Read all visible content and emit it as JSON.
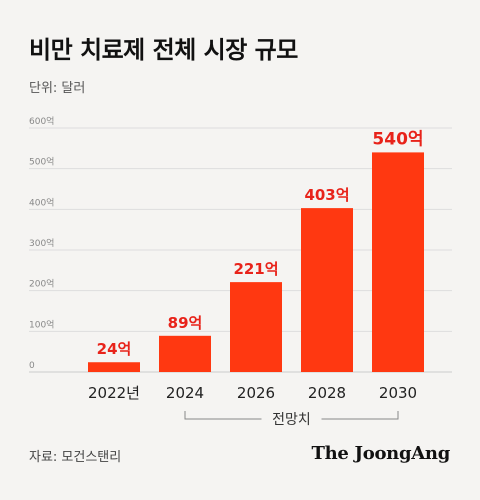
{
  "header": {
    "title": "비만 치료제 전체 시장 규모",
    "unit": "단위: 달러"
  },
  "footer": {
    "source": "자료: 모건스탠리",
    "brand": "The JoongAng"
  },
  "forecast_label": "전망치",
  "colors": {
    "bar": "#ff3811",
    "value_label": "#e8231a",
    "axis_text": "#888888",
    "grid": "#dddddd",
    "bracket": "#888888"
  },
  "chart_data": {
    "type": "bar",
    "title": "비만 치료제 전체 시장 규모",
    "ylabel": "",
    "xlabel": "",
    "categories": [
      "2022년",
      "2024",
      "2026",
      "2028",
      "2030"
    ],
    "values": [
      24,
      89,
      221,
      403,
      540
    ],
    "data_labels": [
      "24억",
      "89억",
      "221억",
      "403억",
      "540억"
    ],
    "ylim": [
      0,
      600
    ],
    "yticks": [
      0,
      100,
      200,
      300,
      400,
      500,
      600
    ],
    "ytick_labels": [
      "0",
      "100억",
      "200억",
      "300억",
      "400억",
      "500억",
      "600억"
    ],
    "grid": true
  }
}
